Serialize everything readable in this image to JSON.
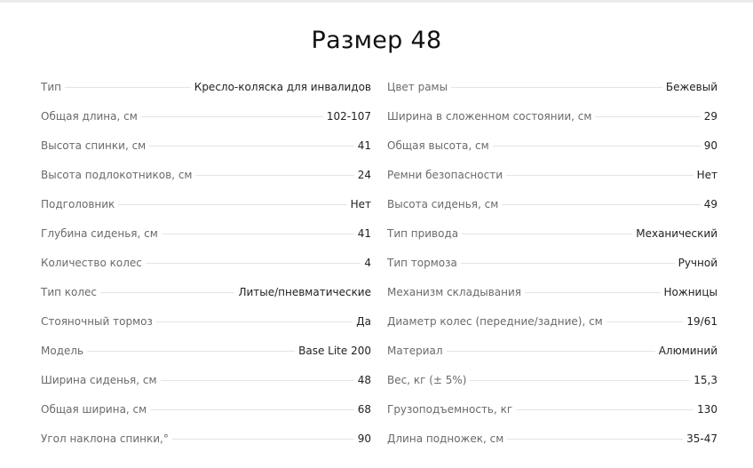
{
  "title": "Размер 48",
  "left": [
    {
      "label": "Тип",
      "value": "Кресло-коляска для инвалидов"
    },
    {
      "label": "Общая длина, см",
      "value": "102-107"
    },
    {
      "label": "Высота спинки, см",
      "value": "41"
    },
    {
      "label": "Высота подлокотников, см",
      "value": "24"
    },
    {
      "label": "Подголовник",
      "value": "Нет"
    },
    {
      "label": "Глубина сиденья, см",
      "value": "41"
    },
    {
      "label": "Количество колес",
      "value": "4"
    },
    {
      "label": "Тип колес",
      "value": "Литые/пневматические"
    },
    {
      "label": "Стояночный тормоз",
      "value": "Да"
    },
    {
      "label": "Модель",
      "value": "Base Lite 200"
    },
    {
      "label": "Ширина сиденья, см",
      "value": "48"
    },
    {
      "label": "Общая ширина, см",
      "value": "68"
    },
    {
      "label": "Угол наклона спинки,°",
      "value": "90"
    }
  ],
  "right": [
    {
      "label": "Цвет рамы",
      "value": "Бежевый"
    },
    {
      "label": "Ширина в сложенном состоянии, см",
      "value": "29"
    },
    {
      "label": "Общая высота, см",
      "value": "90"
    },
    {
      "label": "Ремни безопасности",
      "value": "Нет"
    },
    {
      "label": "Высота сиденья, см",
      "value": "49"
    },
    {
      "label": "Тип привода",
      "value": "Механический"
    },
    {
      "label": "Тип тормоза",
      "value": "Ручной"
    },
    {
      "label": "Механизм складывания",
      "value": "Ножницы"
    },
    {
      "label": "Диаметр колес (передние/задние), см",
      "value": "19/61"
    },
    {
      "label": "Материал",
      "value": "Алюминий"
    },
    {
      "label": "Вес, кг (± 5%)",
      "value": "15,3"
    },
    {
      "label": "Грузоподъемность, кг",
      "value": "130"
    },
    {
      "label": "Длина подножек, см",
      "value": "35-47"
    }
  ]
}
